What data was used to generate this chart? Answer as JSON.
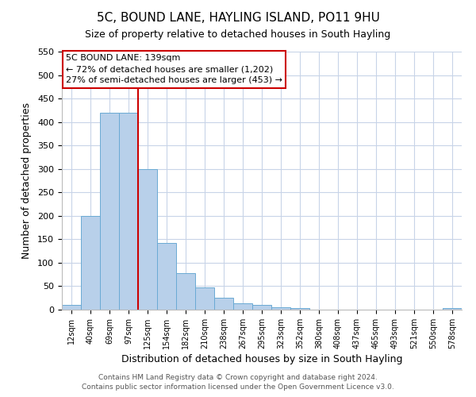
{
  "title": "5C, BOUND LANE, HAYLING ISLAND, PO11 9HU",
  "subtitle": "Size of property relative to detached houses in South Hayling",
  "xlabel": "Distribution of detached houses by size in South Hayling",
  "ylabel": "Number of detached properties",
  "bar_color": "#b8d0ea",
  "bar_edge_color": "#6aaad4",
  "background_color": "#ffffff",
  "grid_color": "#c8d4e8",
  "bin_labels": [
    "12sqm",
    "40sqm",
    "69sqm",
    "97sqm",
    "125sqm",
    "154sqm",
    "182sqm",
    "210sqm",
    "238sqm",
    "267sqm",
    "295sqm",
    "323sqm",
    "352sqm",
    "380sqm",
    "408sqm",
    "437sqm",
    "465sqm",
    "493sqm",
    "521sqm",
    "550sqm",
    "578sqm"
  ],
  "bar_values": [
    10,
    200,
    420,
    420,
    300,
    143,
    78,
    48,
    25,
    13,
    10,
    5,
    4,
    0,
    0,
    0,
    0,
    0,
    0,
    0,
    3
  ],
  "ylim": [
    0,
    550
  ],
  "yticks": [
    0,
    50,
    100,
    150,
    200,
    250,
    300,
    350,
    400,
    450,
    500,
    550
  ],
  "vline_x": 4,
  "vline_color": "#cc0000",
  "annotation_title": "5C BOUND LANE: 139sqm",
  "annotation_line1": "← 72% of detached houses are smaller (1,202)",
  "annotation_line2": "27% of semi-detached houses are larger (453) →",
  "annotation_box_color": "#ffffff",
  "annotation_box_edge": "#cc0000",
  "footer1": "Contains HM Land Registry data © Crown copyright and database right 2024.",
  "footer2": "Contains public sector information licensed under the Open Government Licence v3.0."
}
